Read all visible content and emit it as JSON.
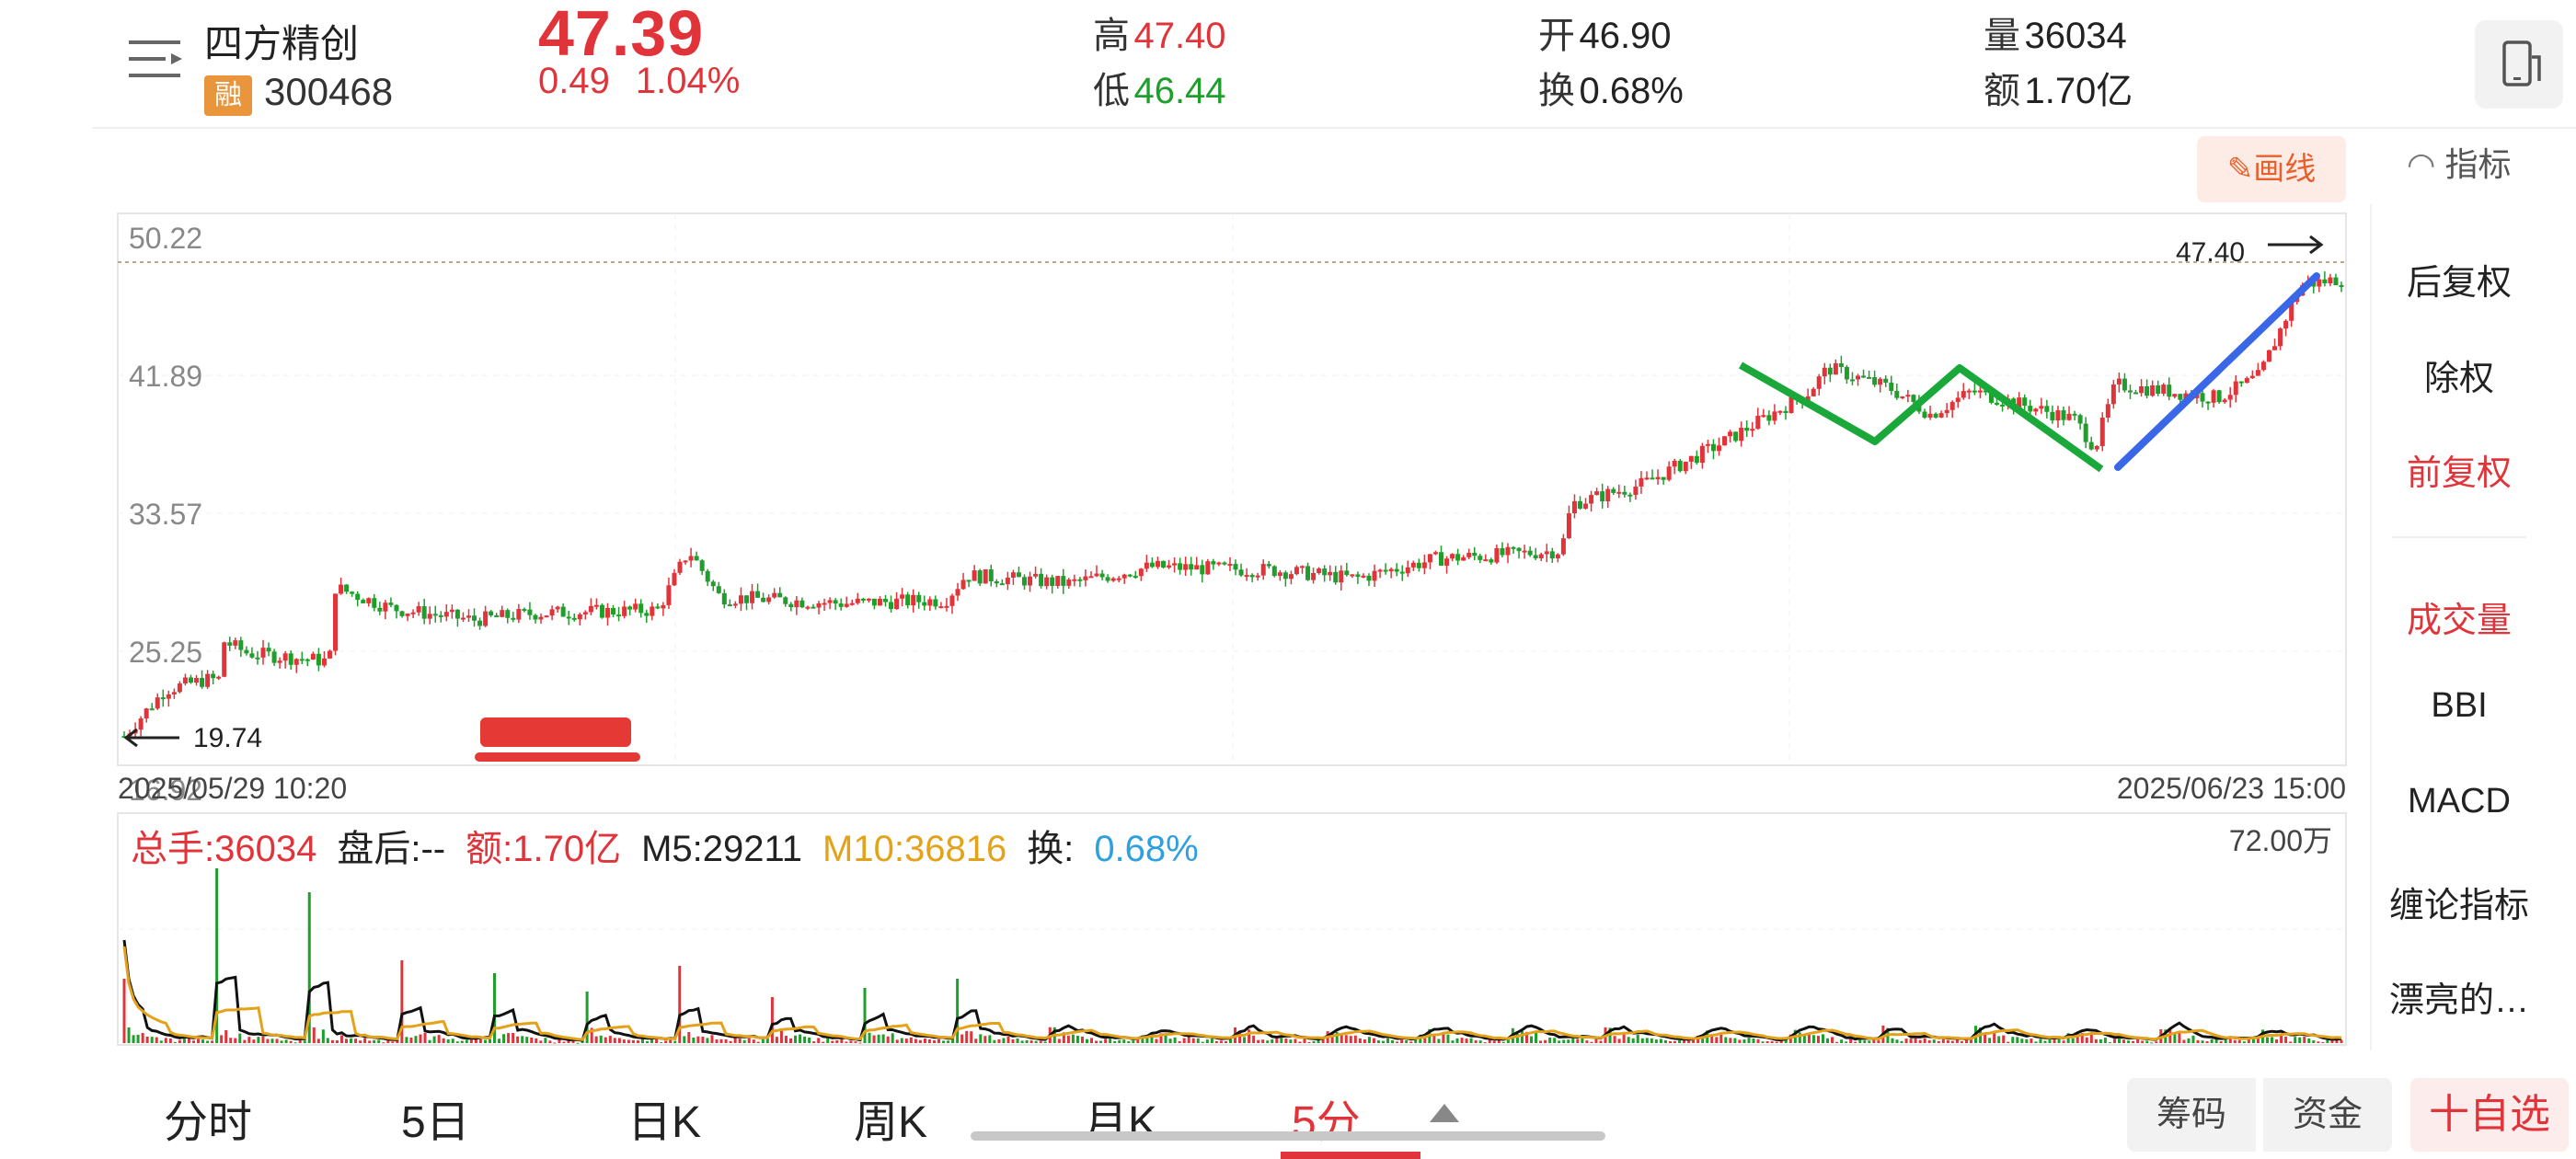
{
  "stock": {
    "name": "四方精创",
    "badge": "融",
    "code": "300468"
  },
  "quote": {
    "price": "47.39",
    "change": "0.49",
    "change_pct": "1.04%",
    "high_label": "高",
    "high": "47.40",
    "low_label": "低",
    "low": "46.44",
    "open_label": "开",
    "open": "46.90",
    "turnover_label": "换",
    "turnover": "0.68%",
    "volume_label": "量",
    "volume": "36034",
    "amount_label": "额",
    "amount": "1.70亿"
  },
  "toolbar": {
    "draw_label": "画线",
    "indicator_label": "指标"
  },
  "right_panel": {
    "items": [
      "后复权",
      "除权",
      "前复权",
      "成交量",
      "BBI",
      "MACD",
      "缠论指标",
      "漂亮的…"
    ],
    "active": [
      "前复权",
      "成交量"
    ]
  },
  "chart_data": {
    "type": "candlestick",
    "interval": "5分",
    "start_time": "2025/05/29 10:20",
    "end_time": "2025/06/23 15:00",
    "y_ticks": [
      "50.22",
      "41.89",
      "33.57",
      "25.25",
      "16.92"
    ],
    "ylim": [
      16.92,
      50.22
    ],
    "max_marker": "47.40",
    "min_marker": "19.74",
    "close_path": [
      {
        "t": 0,
        "v": 19.8
      },
      {
        "t": 2,
        "v": 22.6
      },
      {
        "t": 4,
        "v": 23.2
      },
      {
        "t": 4.6,
        "v": 23.2
      },
      {
        "t": 4.7,
        "v": 25.6
      },
      {
        "t": 6,
        "v": 24.8
      },
      {
        "t": 10,
        "v": 24.3
      },
      {
        "t": 10.2,
        "v": 28.8
      },
      {
        "t": 13,
        "v": 27.5
      },
      {
        "t": 17,
        "v": 26.8
      },
      {
        "t": 20,
        "v": 27.2
      },
      {
        "t": 26,
        "v": 27.4
      },
      {
        "t": 27.5,
        "v": 31.0
      },
      {
        "t": 29,
        "v": 28.2
      },
      {
        "t": 35,
        "v": 27.8
      },
      {
        "t": 40,
        "v": 28.0
      },
      {
        "t": 41,
        "v": 29.5
      },
      {
        "t": 46,
        "v": 29.0
      },
      {
        "t": 50,
        "v": 30.0
      },
      {
        "t": 56,
        "v": 29.8
      },
      {
        "t": 60,
        "v": 29.3
      },
      {
        "t": 64,
        "v": 30.5
      },
      {
        "t": 68,
        "v": 30.8
      },
      {
        "t": 70,
        "v": 31.0
      },
      {
        "t": 70.5,
        "v": 33.8
      },
      {
        "t": 74,
        "v": 35.0
      },
      {
        "t": 78,
        "v": 37.6
      },
      {
        "t": 82,
        "v": 40.5
      },
      {
        "t": 83,
        "v": 42.0
      },
      {
        "t": 86,
        "v": 40.8
      },
      {
        "t": 88,
        "v": 39.2
      },
      {
        "t": 90,
        "v": 40.6
      },
      {
        "t": 93,
        "v": 39.6
      },
      {
        "t": 95,
        "v": 38.9
      },
      {
        "t": 96,
        "v": 37.2
      },
      {
        "t": 97,
        "v": 41.0
      },
      {
        "t": 102,
        "v": 40.2
      },
      {
        "t": 104,
        "v": 41.5
      },
      {
        "t": 106,
        "v": 47.0
      },
      {
        "t": 108,
        "v": 47.4
      }
    ],
    "volume": {
      "total_label": "总手:36034",
      "after_hours_label": "盘后:--",
      "amount_label": "额:1.70亿",
      "m5_label": "M5:29211",
      "m10_label": "M10:36816",
      "turnover_label_prefix": "换:",
      "turnover_value": "0.68%",
      "max_label": "72.00万",
      "spikes": [
        0.35,
        0.95,
        0.82,
        0.45,
        0.38,
        0.28,
        0.42,
        0.25,
        0.3,
        0.35,
        0.4,
        0.3,
        0.25,
        0.5,
        0.35,
        0.6,
        0.42,
        0.38,
        0.3,
        0.45,
        0.35,
        0.28,
        0.3,
        0.4
      ]
    },
    "annotations": {
      "green_pattern": "M-shape",
      "blue_trendline": "rising"
    }
  },
  "tabs": [
    "分时",
    "5日",
    "日K",
    "周K",
    "月K",
    "5分"
  ],
  "active_tab": "5分",
  "bottom_buttons": {
    "chip": "筹码",
    "fund": "资金",
    "favorite": "十自选"
  },
  "colors": {
    "up": "#e0343a",
    "down": "#1f9e2c",
    "accent": "#e8602c",
    "m5": "#111111",
    "m10": "#e3a21a",
    "turnover": "#2ea0e0",
    "trend_green": "#1aa83a",
    "trend_blue": "#3a66e8"
  }
}
